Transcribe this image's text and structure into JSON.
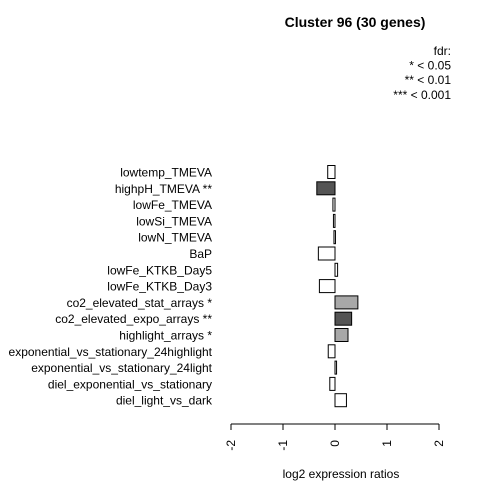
{
  "chart_data": {
    "type": "bar",
    "orientation": "horizontal",
    "title": "Cluster 96 (30 genes)",
    "xlabel": "log2 expression ratios",
    "ylabel": "",
    "xlim": [
      -2,
      2
    ],
    "xticks": [
      "-2",
      "-1",
      "0",
      "1",
      "2"
    ],
    "xtick_values": [
      -2,
      -1,
      0,
      1,
      2
    ],
    "legend": {
      "placement": "top-right",
      "lines": [
        "fdr:",
        "* < 0.05",
        "** < 0.01",
        "*** < 0.001"
      ]
    },
    "categories": [
      "lowtemp_TMEVA",
      "highpH_TMEVA **",
      "lowFe_TMEVA",
      "lowSi_TMEVA",
      "lowN_TMEVA",
      "BaP",
      "lowFe_KTKB_Day5",
      "lowFe_KTKB_Day3",
      "co2_elevated_stat_arrays *",
      "co2_elevated_expo_arrays **",
      "highlight_arrays *",
      "exponential_vs_stationary_24highlight",
      "exponential_vs_stationary_24light",
      "diel_exponential_vs_stationary",
      "diel_light_vs_dark"
    ],
    "values": [
      -0.14,
      -0.35,
      -0.04,
      -0.03,
      -0.02,
      -0.32,
      0.05,
      -0.3,
      0.44,
      0.32,
      0.25,
      -0.13,
      0.03,
      -0.1,
      0.22
    ],
    "bar_colors": [
      "#ffffff",
      "#545454",
      "#ffffff",
      "#ffffff",
      "#ffffff",
      "#ffffff",
      "#ffffff",
      "#ffffff",
      "#a8a8a8",
      "#545454",
      "#a8a8a8",
      "#ffffff",
      "#ffffff",
      "#ffffff",
      "#ffffff"
    ]
  }
}
